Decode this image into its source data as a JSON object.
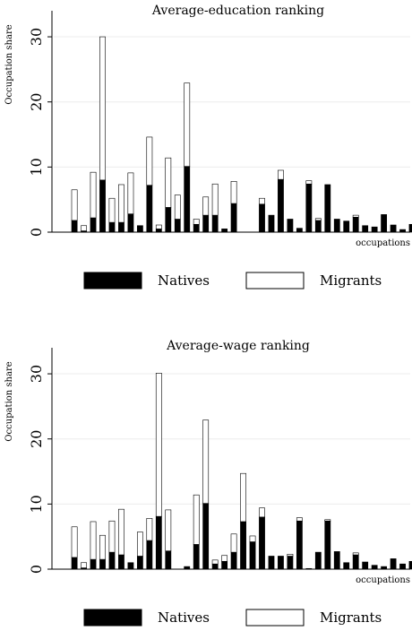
{
  "chart_data": [
    {
      "type": "bar",
      "stacked": true,
      "title": "Average-education ranking",
      "ylabel": "Occupation share",
      "xlabel": "occupations",
      "ylim": [
        0,
        34
      ],
      "yticks": [
        0,
        10,
        20,
        30
      ],
      "grid": true,
      "legend_position": "bottom",
      "series": [
        {
          "name": "Natives",
          "color": "#000000",
          "values": [
            1.8,
            0.2,
            2.2,
            8.0,
            1.5,
            1.5,
            2.8,
            1.0,
            7.2,
            0.5,
            3.8,
            2.0,
            10.1,
            1.2,
            2.6,
            2.6,
            0.5,
            4.4,
            0.0,
            0.0,
            4.3,
            2.6,
            8.1,
            2.0,
            0.6,
            7.4,
            1.8,
            7.3,
            2.0,
            1.7,
            2.3,
            1.0,
            0.8,
            2.7,
            1.1,
            0.4,
            1.2
          ]
        },
        {
          "name": "Migrants",
          "color": "#ffffff",
          "values": [
            4.7,
            0.8,
            7.0,
            22.0,
            3.7,
            5.8,
            6.3,
            0.0,
            7.4,
            0.6,
            7.6,
            3.7,
            12.8,
            0.8,
            2.8,
            4.8,
            0.0,
            3.4,
            0.0,
            0.0,
            0.9,
            0.0,
            1.4,
            0.0,
            0.0,
            0.5,
            0.3,
            0.0,
            0.0,
            0.0,
            0.3,
            0.0,
            0.0,
            0.0,
            0.0,
            0.0,
            0.0
          ]
        }
      ]
    },
    {
      "type": "bar",
      "stacked": true,
      "title": "Average-wage ranking",
      "ylabel": "Occupation share",
      "xlabel": "occupations",
      "ylim": [
        0,
        34
      ],
      "yticks": [
        0,
        10,
        20,
        30
      ],
      "grid": true,
      "legend_position": "bottom",
      "series": [
        {
          "name": "Natives",
          "color": "#000000",
          "values": [
            1.8,
            0.2,
            1.5,
            1.5,
            2.6,
            2.2,
            1.0,
            2.0,
            4.4,
            8.1,
            2.8,
            0.0,
            0.4,
            3.8,
            10.1,
            0.8,
            1.2,
            2.6,
            7.3,
            4.2,
            8.0,
            2.0,
            2.0,
            2.0,
            7.4,
            0.1,
            2.6,
            7.4,
            2.7,
            1.0,
            2.2,
            1.1,
            0.6,
            0.4,
            1.6,
            0.8,
            1.2
          ]
        },
        {
          "name": "Migrants",
          "color": "#ffffff",
          "values": [
            4.7,
            0.8,
            5.8,
            3.7,
            4.8,
            7.0,
            0.0,
            3.7,
            3.4,
            22.0,
            6.3,
            0.0,
            0.0,
            7.6,
            12.8,
            0.6,
            0.9,
            2.8,
            7.4,
            0.9,
            1.4,
            0.0,
            0.0,
            0.3,
            0.5,
            0.0,
            0.0,
            0.2,
            0.0,
            0.0,
            0.3,
            0.0,
            0.0,
            0.0,
            0.0,
            0.0,
            0.0
          ]
        }
      ]
    }
  ]
}
